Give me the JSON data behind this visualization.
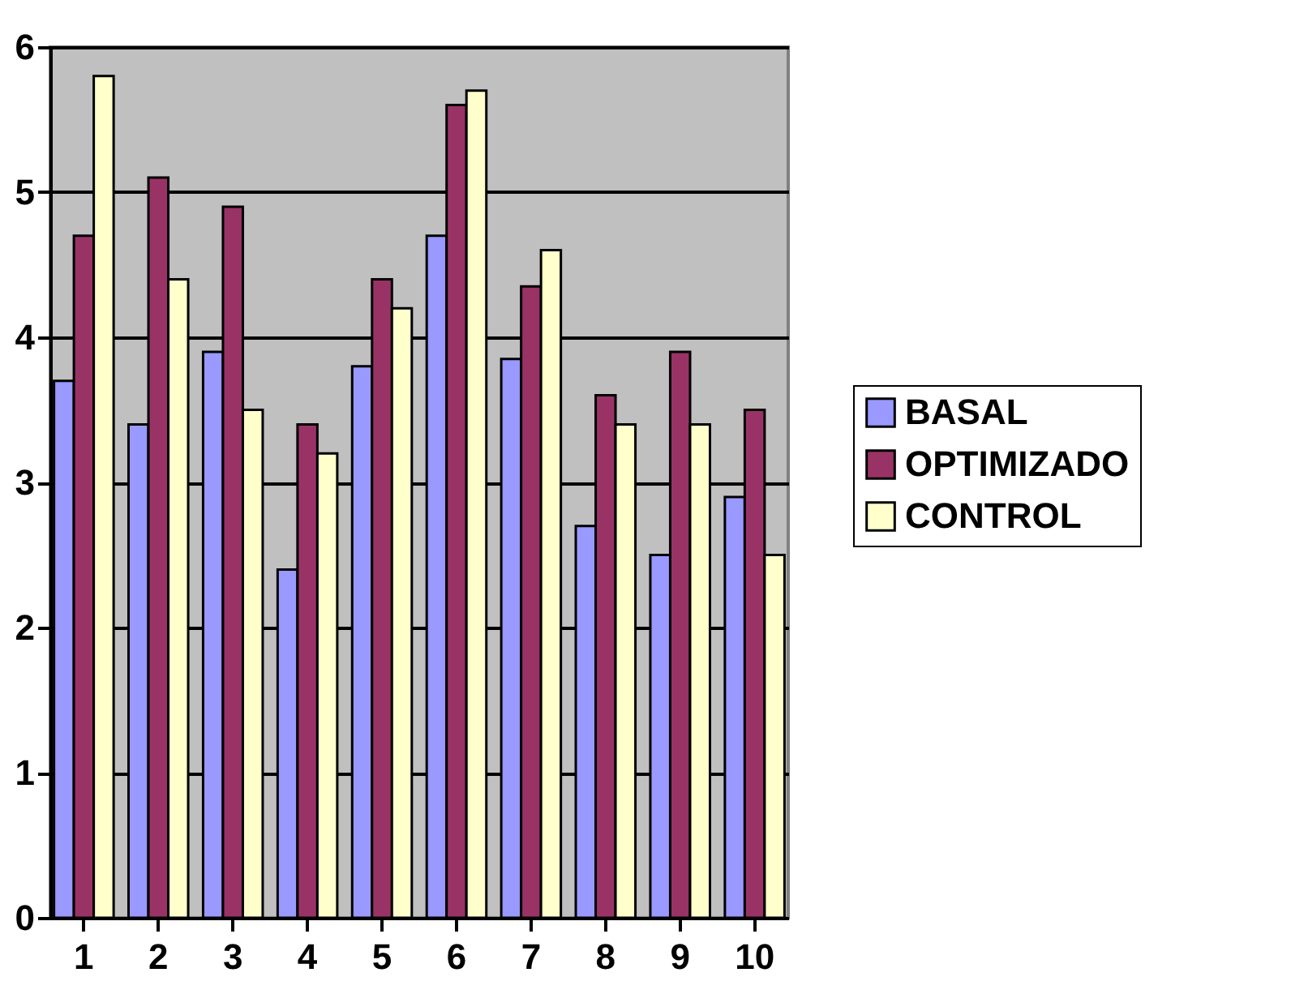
{
  "chart_data": {
    "type": "bar",
    "categories": [
      "1",
      "2",
      "3",
      "4",
      "5",
      "6",
      "7",
      "8",
      "9",
      "10"
    ],
    "series": [
      {
        "name": "BASAL",
        "color": "#9999ff",
        "values": [
          3.7,
          3.4,
          3.9,
          2.4,
          3.8,
          4.7,
          3.85,
          2.7,
          2.5,
          2.9
        ]
      },
      {
        "name": "OPTIMIZADO",
        "color": "#993366",
        "values": [
          4.7,
          5.1,
          4.9,
          3.4,
          4.4,
          5.6,
          4.35,
          3.6,
          3.9,
          3.5
        ]
      },
      {
        "name": "CONTROL",
        "color": "#ffffcc",
        "values": [
          5.8,
          4.4,
          3.5,
          3.2,
          4.2,
          5.7,
          4.6,
          3.4,
          3.4,
          2.5
        ]
      }
    ],
    "ylim": [
      0,
      6
    ],
    "yticks": [
      0,
      1,
      2,
      3,
      4,
      5,
      6
    ],
    "grid": "y",
    "legend": "right"
  }
}
